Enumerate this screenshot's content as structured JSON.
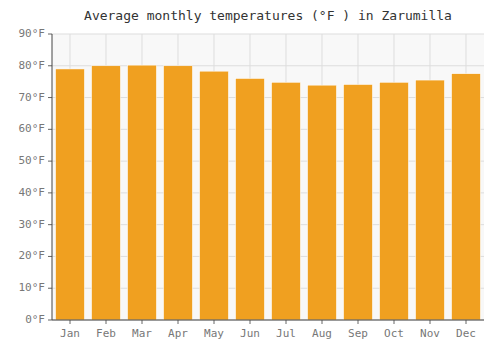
{
  "chart_data": {
    "type": "bar",
    "title": "Average monthly temperatures (°F ) in Zarumilla",
    "categories": [
      "Jan",
      "Feb",
      "Mar",
      "Apr",
      "May",
      "Jun",
      "Jul",
      "Aug",
      "Sep",
      "Oct",
      "Nov",
      "Dec"
    ],
    "values": [
      79.0,
      80.0,
      80.2,
      80.0,
      78.3,
      76.0,
      74.8,
      73.9,
      74.1,
      74.8,
      75.5,
      77.5
    ],
    "color": "#F0A020",
    "ylim": [
      0,
      90
    ],
    "yticks": [
      {
        "value": 0,
        "label": "0°F"
      },
      {
        "value": 10,
        "label": "10°F"
      },
      {
        "value": 20,
        "label": "20°F"
      },
      {
        "value": 30,
        "label": "30°F"
      },
      {
        "value": 40,
        "label": "40°F"
      },
      {
        "value": 50,
        "label": "50°F"
      },
      {
        "value": 60,
        "label": "60°F"
      },
      {
        "value": 70,
        "label": "70°F"
      },
      {
        "value": 80,
        "label": "80°F"
      },
      {
        "value": 90,
        "label": "90°F"
      }
    ],
    "grid": true
  }
}
